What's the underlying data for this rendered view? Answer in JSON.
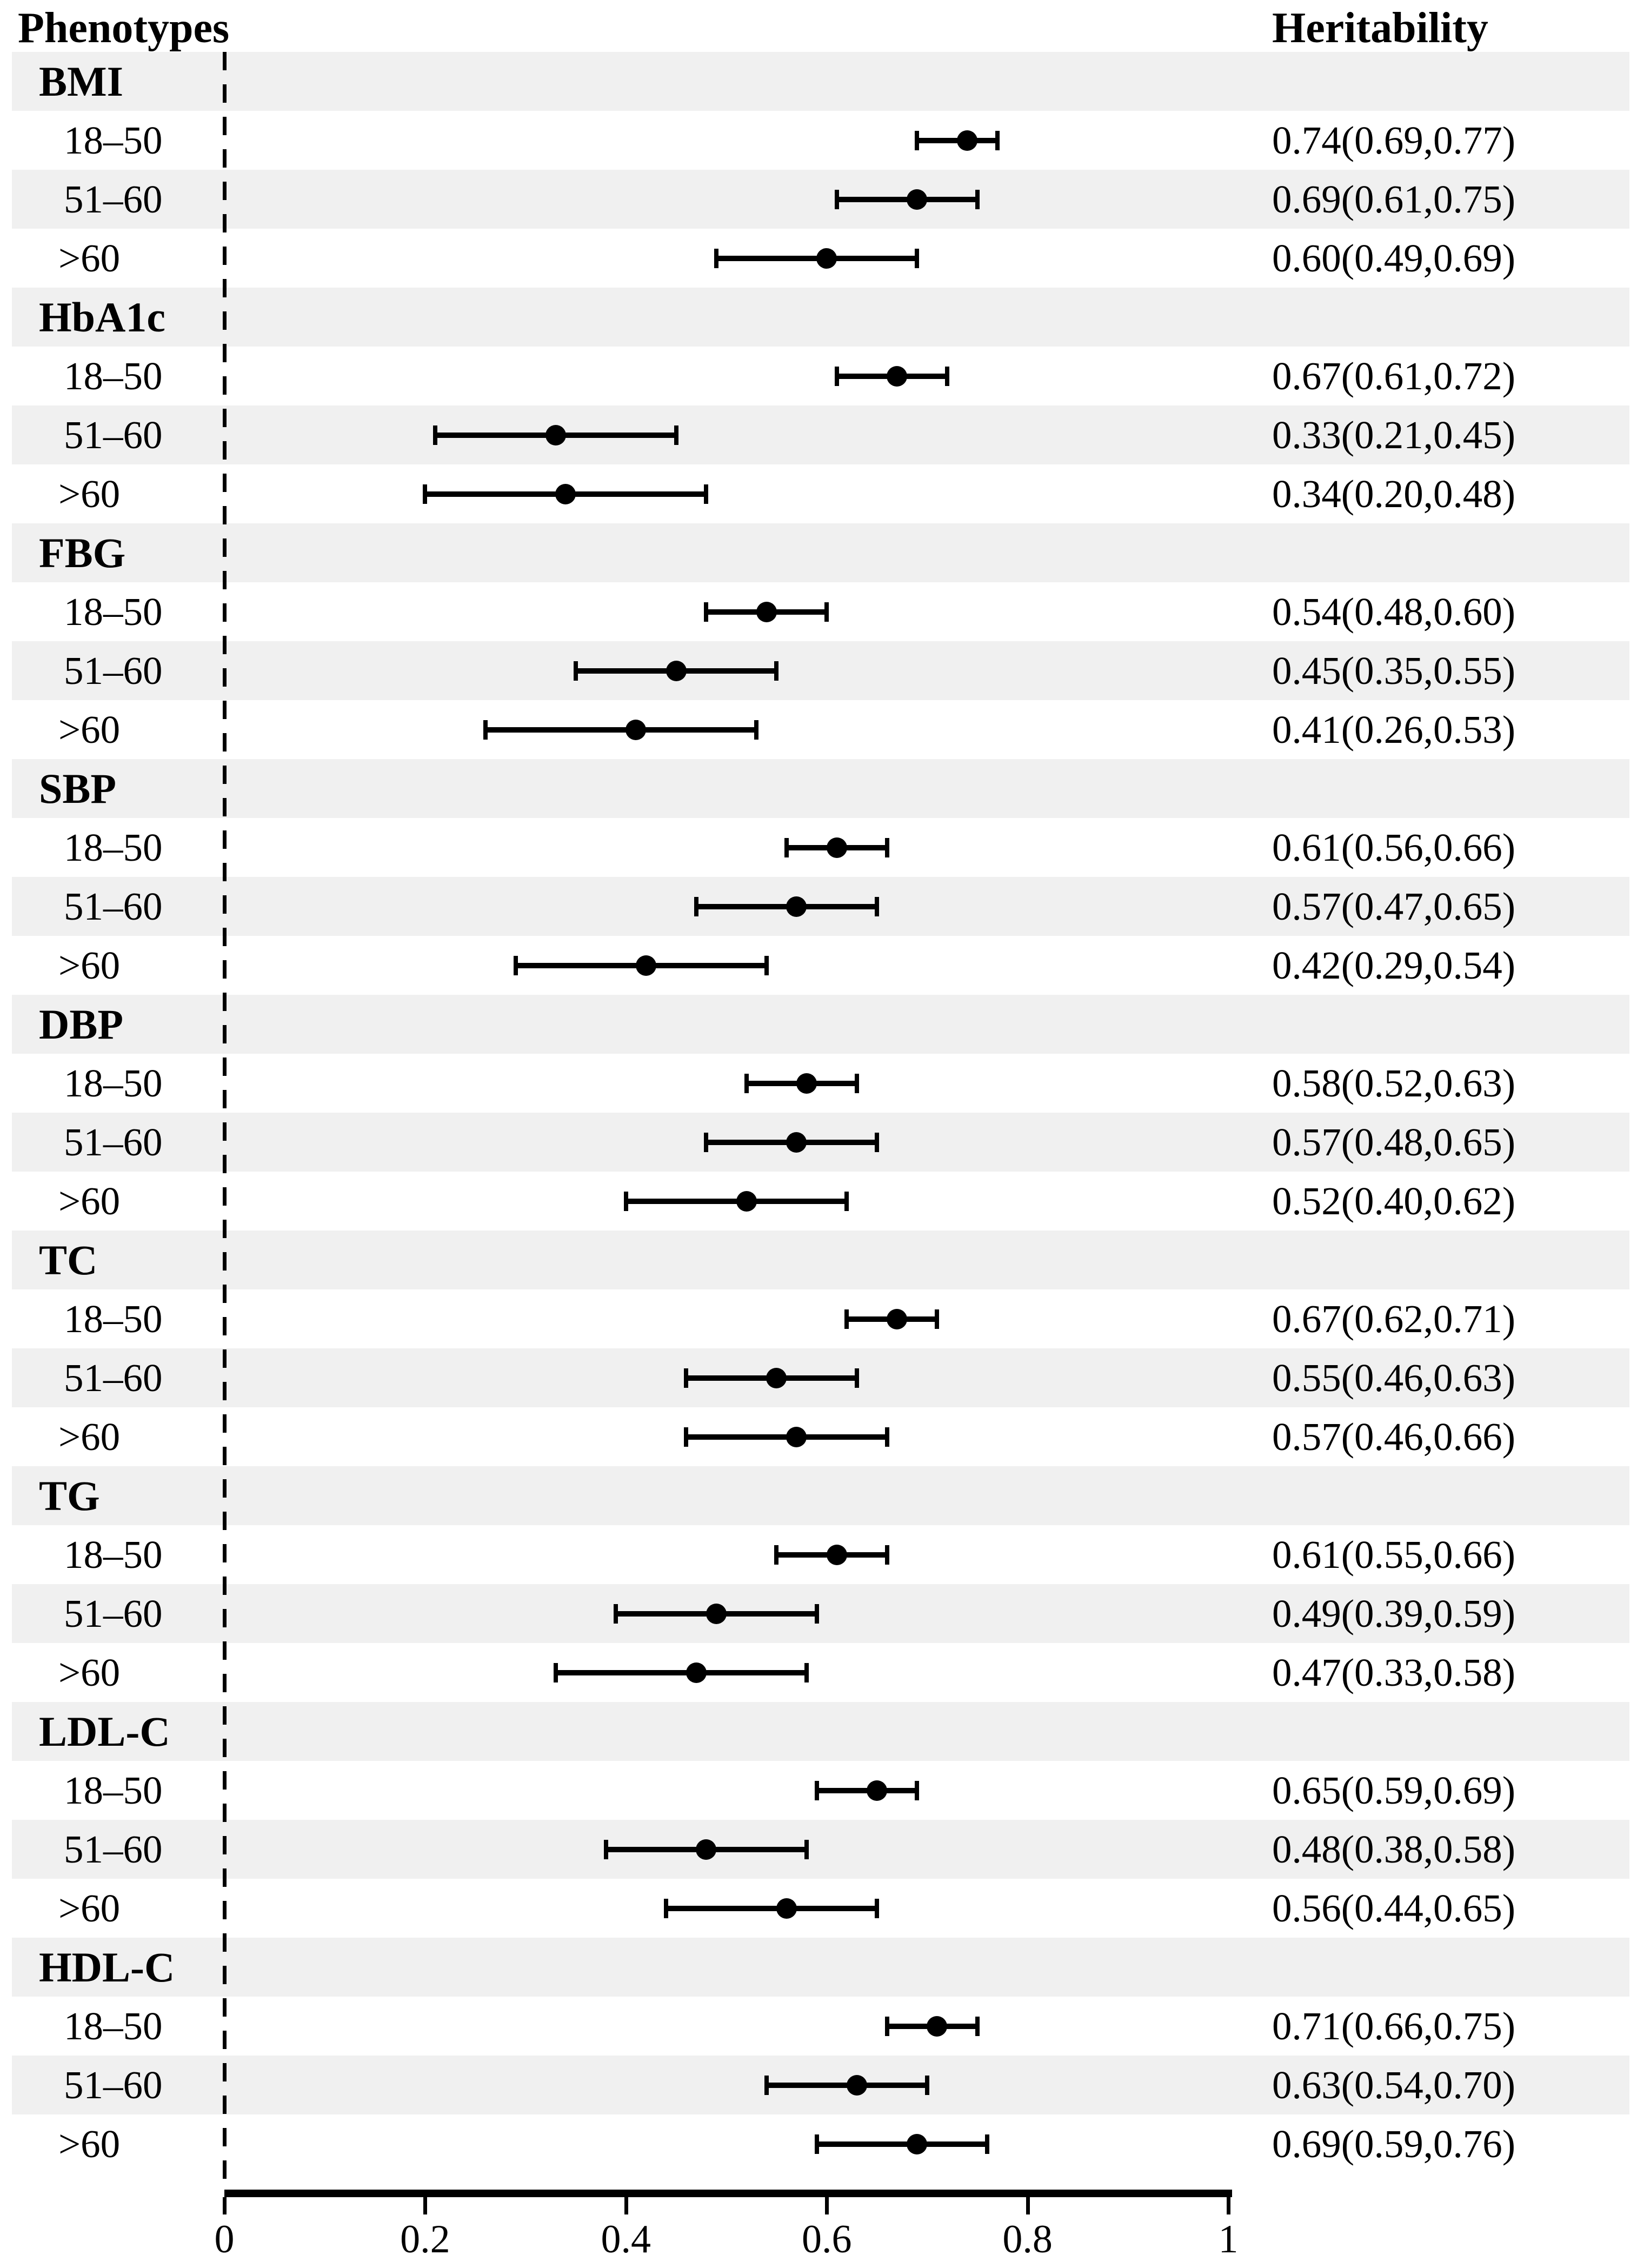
{
  "header": {
    "phenotypes_label": "Phenotypes",
    "heritability_label": "Heritability"
  },
  "colors": {
    "band_shade": "#f0f0f0",
    "ink": "#000000"
  },
  "chart_data": {
    "type": "scatter",
    "subtype": "forest-plot",
    "xlabel": "",
    "ylabel": "",
    "xlim": [
      0,
      1
    ],
    "grid": false,
    "zero_reference_line": 0,
    "axis_ticks": [
      {
        "value": 0,
        "label": "0"
      },
      {
        "value": 0.2,
        "label": "0.2"
      },
      {
        "value": 0.4,
        "label": "0.4"
      },
      {
        "value": 0.6,
        "label": "0.6"
      },
      {
        "value": 0.8,
        "label": "0.8"
      },
      {
        "value": 1,
        "label": "1"
      }
    ],
    "sections": [
      {
        "label": "BMI",
        "rows": [
          {
            "age": "18–50",
            "mean": 0.74,
            "lo": 0.69,
            "hi": 0.77,
            "value_text": "0.74(0.69,0.77)"
          },
          {
            "age": "51–60",
            "mean": 0.69,
            "lo": 0.61,
            "hi": 0.75,
            "value_text": "0.69(0.61,0.75)"
          },
          {
            "age": ">60",
            "mean": 0.6,
            "lo": 0.49,
            "hi": 0.69,
            "value_text": "0.60(0.49,0.69)"
          }
        ]
      },
      {
        "label": "HbA1c",
        "rows": [
          {
            "age": "18–50",
            "mean": 0.67,
            "lo": 0.61,
            "hi": 0.72,
            "value_text": "0.67(0.61,0.72)"
          },
          {
            "age": "51–60",
            "mean": 0.33,
            "lo": 0.21,
            "hi": 0.45,
            "value_text": "0.33(0.21,0.45)"
          },
          {
            "age": ">60",
            "mean": 0.34,
            "lo": 0.2,
            "hi": 0.48,
            "value_text": "0.34(0.20,0.48)"
          }
        ]
      },
      {
        "label": "FBG",
        "rows": [
          {
            "age": "18–50",
            "mean": 0.54,
            "lo": 0.48,
            "hi": 0.6,
            "value_text": "0.54(0.48,0.60)"
          },
          {
            "age": "51–60",
            "mean": 0.45,
            "lo": 0.35,
            "hi": 0.55,
            "value_text": "0.45(0.35,0.55)"
          },
          {
            "age": ">60",
            "mean": 0.41,
            "lo": 0.26,
            "hi": 0.53,
            "value_text": "0.41(0.26,0.53)"
          }
        ]
      },
      {
        "label": "SBP",
        "rows": [
          {
            "age": "18–50",
            "mean": 0.61,
            "lo": 0.56,
            "hi": 0.66,
            "value_text": "0.61(0.56,0.66)"
          },
          {
            "age": "51–60",
            "mean": 0.57,
            "lo": 0.47,
            "hi": 0.65,
            "value_text": "0.57(0.47,0.65)"
          },
          {
            "age": ">60",
            "mean": 0.42,
            "lo": 0.29,
            "hi": 0.54,
            "value_text": "0.42(0.29,0.54)"
          }
        ]
      },
      {
        "label": "DBP",
        "rows": [
          {
            "age": "18–50",
            "mean": 0.58,
            "lo": 0.52,
            "hi": 0.63,
            "value_text": "0.58(0.52,0.63)"
          },
          {
            "age": "51–60",
            "mean": 0.57,
            "lo": 0.48,
            "hi": 0.65,
            "value_text": "0.57(0.48,0.65)"
          },
          {
            "age": ">60",
            "mean": 0.52,
            "lo": 0.4,
            "hi": 0.62,
            "value_text": "0.52(0.40,0.62)"
          }
        ]
      },
      {
        "label": "TC",
        "rows": [
          {
            "age": "18–50",
            "mean": 0.67,
            "lo": 0.62,
            "hi": 0.71,
            "value_text": "0.67(0.62,0.71)"
          },
          {
            "age": "51–60",
            "mean": 0.55,
            "lo": 0.46,
            "hi": 0.63,
            "value_text": "0.55(0.46,0.63)"
          },
          {
            "age": ">60",
            "mean": 0.57,
            "lo": 0.46,
            "hi": 0.66,
            "value_text": "0.57(0.46,0.66)"
          }
        ]
      },
      {
        "label": "TG",
        "rows": [
          {
            "age": "18–50",
            "mean": 0.61,
            "lo": 0.55,
            "hi": 0.66,
            "value_text": "0.61(0.55,0.66)"
          },
          {
            "age": "51–60",
            "mean": 0.49,
            "lo": 0.39,
            "hi": 0.59,
            "value_text": "0.49(0.39,0.59)"
          },
          {
            "age": ">60",
            "mean": 0.47,
            "lo": 0.33,
            "hi": 0.58,
            "value_text": "0.47(0.33,0.58)"
          }
        ]
      },
      {
        "label": "LDL-C",
        "rows": [
          {
            "age": "18–50",
            "mean": 0.65,
            "lo": 0.59,
            "hi": 0.69,
            "value_text": "0.65(0.59,0.69)"
          },
          {
            "age": "51–60",
            "mean": 0.48,
            "lo": 0.38,
            "hi": 0.58,
            "value_text": "0.48(0.38,0.58)"
          },
          {
            "age": ">60",
            "mean": 0.56,
            "lo": 0.44,
            "hi": 0.65,
            "value_text": "0.56(0.44,0.65)"
          }
        ]
      },
      {
        "label": "HDL-C",
        "rows": [
          {
            "age": "18–50",
            "mean": 0.71,
            "lo": 0.66,
            "hi": 0.75,
            "value_text": "0.71(0.66,0.75)"
          },
          {
            "age": "51–60",
            "mean": 0.63,
            "lo": 0.54,
            "hi": 0.7,
            "value_text": "0.63(0.54,0.70)"
          },
          {
            "age": ">60",
            "mean": 0.69,
            "lo": 0.59,
            "hi": 0.76,
            "value_text": "0.69(0.59,0.76)"
          }
        ]
      }
    ]
  }
}
